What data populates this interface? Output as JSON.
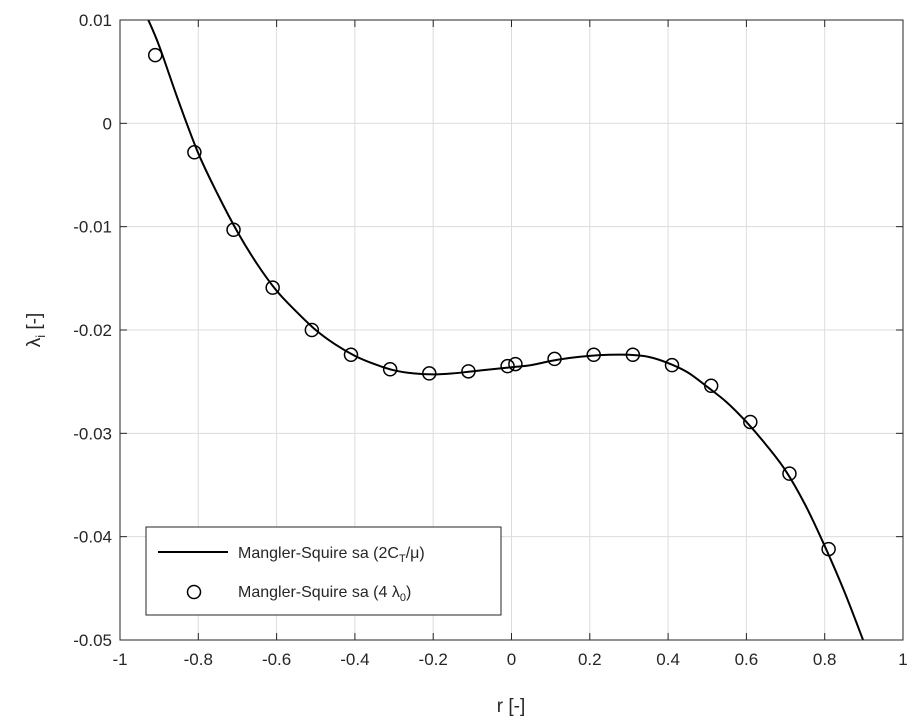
{
  "chart_data": {
    "type": "line",
    "xlabel": "r [-]",
    "ylabel": {
      "base": "λ",
      "sub": "i",
      "rest": " [-]"
    },
    "xlim": [
      -1,
      1
    ],
    "ylim": [
      -0.05,
      0.01
    ],
    "xticks": [
      -1,
      -0.8,
      -0.6,
      -0.4,
      -0.2,
      0,
      0.2,
      0.4,
      0.6,
      0.8,
      1
    ],
    "xtick_labels": [
      "-1",
      "-0.8",
      "-0.6",
      "-0.4",
      "-0.2",
      "0",
      "0.2",
      "0.4",
      "0.6",
      "0.8",
      "1"
    ],
    "yticks": [
      -0.05,
      -0.04,
      -0.03,
      -0.02,
      -0.01,
      0,
      0.01
    ],
    "ytick_labels": [
      "-0.05",
      "-0.04",
      "-0.03",
      "-0.02",
      "-0.01",
      "0",
      "0.01"
    ],
    "grid": true,
    "legend_position": "bottom-left",
    "series": [
      {
        "name": "Mangler-Squire sa (2C_T/μ)",
        "label_parts": {
          "before": "Mangler-Squire sa (2C",
          "sub": "T",
          "after": "/μ)"
        },
        "style": "line",
        "color": "#000000",
        "x": [
          -0.93,
          -0.9,
          -0.85,
          -0.8,
          -0.75,
          -0.7,
          -0.65,
          -0.6,
          -0.55,
          -0.5,
          -0.45,
          -0.4,
          -0.35,
          -0.3,
          -0.25,
          -0.2,
          -0.15,
          -0.1,
          -0.05,
          0,
          0.05,
          0.1,
          0.15,
          0.2,
          0.25,
          0.3,
          0.35,
          0.4,
          0.45,
          0.5,
          0.55,
          0.6,
          0.65,
          0.7,
          0.75,
          0.8,
          0.85,
          0.9
        ],
        "values": [
          0.0102,
          0.0075,
          0.0021,
          -0.0029,
          -0.0069,
          -0.0105,
          -0.0136,
          -0.0162,
          -0.0182,
          -0.02,
          -0.0214,
          -0.0225,
          -0.0233,
          -0.0239,
          -0.0242,
          -0.0243,
          -0.0242,
          -0.024,
          -0.0238,
          -0.0236,
          -0.0234,
          -0.023,
          -0.0227,
          -0.0225,
          -0.0224,
          -0.0224,
          -0.0226,
          -0.0232,
          -0.0241,
          -0.0255,
          -0.027,
          -0.0289,
          -0.0311,
          -0.0336,
          -0.0369,
          -0.0409,
          -0.0453,
          -0.0502
        ]
      },
      {
        "name": "Mangler-Squire sa (4 λ_0)",
        "label_parts": {
          "before": "Mangler-Squire sa (4 λ",
          "sub": "0",
          "after": ")"
        },
        "style": "markers",
        "marker": "circle",
        "color": "#000000",
        "x": [
          -0.91,
          -0.81,
          -0.71,
          -0.61,
          -0.51,
          -0.41,
          -0.31,
          -0.21,
          -0.11,
          -0.01,
          0.01,
          0.11,
          0.21,
          0.31,
          0.41,
          0.51,
          0.61,
          0.71,
          0.81
        ],
        "values": [
          0.0066,
          -0.0028,
          -0.0103,
          -0.0159,
          -0.02,
          -0.0224,
          -0.0238,
          -0.0242,
          -0.024,
          -0.0235,
          -0.0233,
          -0.0228,
          -0.0224,
          -0.0224,
          -0.0234,
          -0.0254,
          -0.0289,
          -0.0339,
          -0.0412
        ]
      }
    ]
  }
}
